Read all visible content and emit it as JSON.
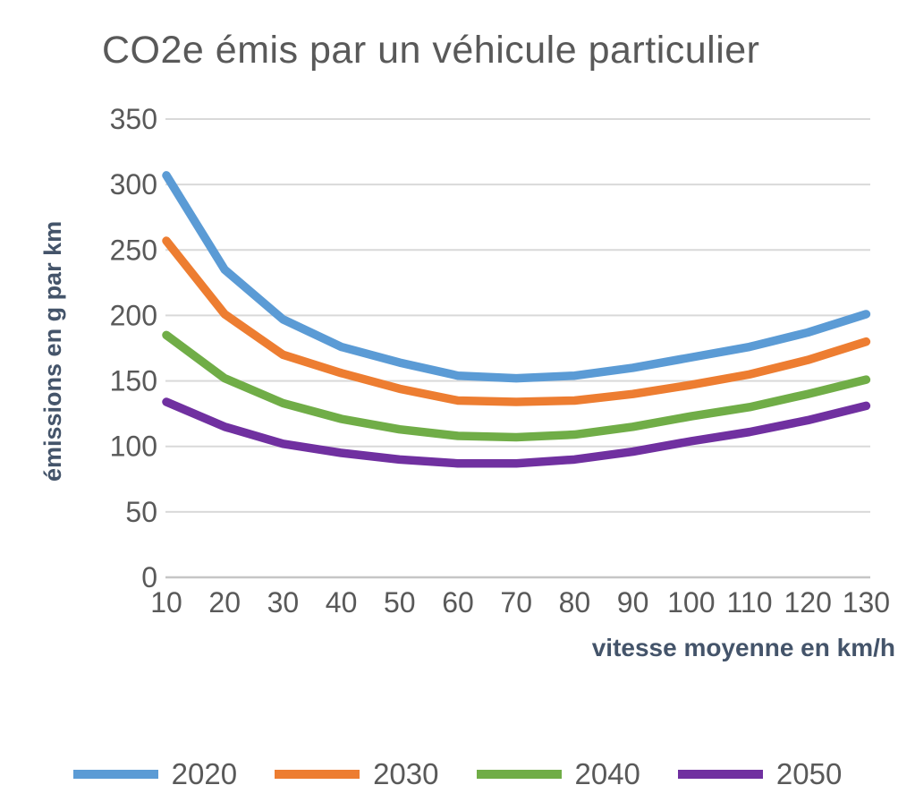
{
  "chart_data": {
    "type": "line",
    "title": "CO2e émis par un véhicule particulier",
    "xlabel": "vitesse moyenne en km/h",
    "ylabel": "émissions en g par km",
    "x": [
      10,
      20,
      30,
      40,
      50,
      60,
      70,
      80,
      90,
      100,
      110,
      120,
      130
    ],
    "xticks": [
      "10",
      "20",
      "30",
      "40",
      "50",
      "60",
      "70",
      "80",
      "90",
      "100",
      "110",
      "120",
      "130"
    ],
    "yticks": [
      350,
      300,
      250,
      200,
      150,
      100,
      50,
      0
    ],
    "ylim": [
      0,
      350
    ],
    "xlim": [
      10,
      130
    ],
    "grid": true,
    "legend_position": "bottom",
    "series": [
      {
        "name": "2020",
        "color": "#5B9BD5",
        "values": [
          307,
          235,
          197,
          176,
          164,
          154,
          152,
          154,
          160,
          168,
          176,
          187,
          201
        ]
      },
      {
        "name": "2030",
        "color": "#ED7D31",
        "values": [
          257,
          201,
          170,
          156,
          144,
          135,
          134,
          135,
          140,
          147,
          155,
          166,
          180
        ]
      },
      {
        "name": "2040",
        "color": "#70AD47",
        "values": [
          185,
          152,
          133,
          121,
          113,
          108,
          107,
          109,
          115,
          123,
          130,
          140,
          151
        ]
      },
      {
        "name": "2050",
        "color": "#7030A0",
        "values": [
          134,
          115,
          102,
          95,
          90,
          87,
          87,
          90,
          96,
          104,
          111,
          120,
          131
        ]
      }
    ]
  },
  "colors": {
    "tick_text": "#595959",
    "axis_title_text": "#44546A",
    "gridline": "#D9D9D9",
    "axis_line": "#C6C6C6",
    "background": "#FFFFFF"
  }
}
